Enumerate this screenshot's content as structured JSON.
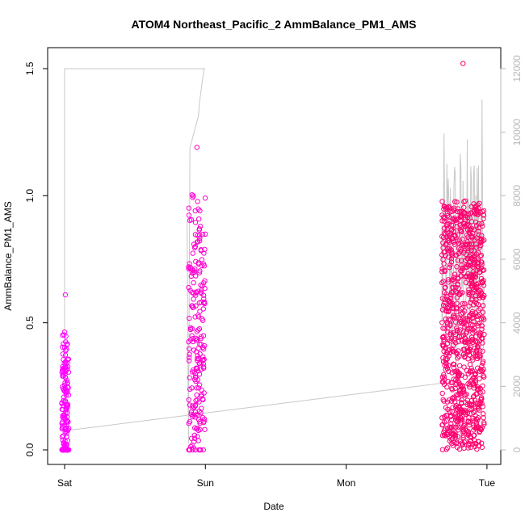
{
  "chart_data": {
    "type": "scatter",
    "title": "ATOM4 Northeast_Pacific_2 AmmBalance_PM1_AMS",
    "xlabel": "Date",
    "ylabel": "AmmBalance_PM1_AMS",
    "x_ticks": [
      "Sat",
      "Sun",
      "Mon",
      "Tue"
    ],
    "x_range_days": [
      0,
      3
    ],
    "ylim": [
      0,
      1.5
    ],
    "y_ticks": [
      "0.0",
      "0.5",
      "1.0",
      "1.5"
    ],
    "y2_ticks": [
      "0",
      "2000",
      "4000",
      "6000",
      "8000",
      "10000",
      "12000"
    ],
    "y2lim": [
      0,
      12000
    ],
    "grid": false,
    "colors": {
      "points_start": "#ff00ff",
      "points_end": "#ff0066",
      "secondary_line": "#c8c8c8",
      "right_axis": "#b8b8b8"
    },
    "clusters": [
      {
        "name": "Sat",
        "x_start": -0.02,
        "x_end": 0.03,
        "y_center": 0.15,
        "y_spread": 0.5,
        "y_max_outlier": 0.61
      },
      {
        "name": "Sun",
        "x_start": 0.88,
        "x_end": 1.0,
        "y_center": 0.45,
        "y_spread": 0.85,
        "y_max_outlier": 1.19
      },
      {
        "name": "Tue",
        "x_start": 2.68,
        "x_end": 2.98,
        "y_center": 0.5,
        "y_spread": 1.0,
        "y_max_outlier": 1.52
      }
    ],
    "secondary_series": {
      "plateau_value": 12000,
      "plateau_x": [
        0.0,
        1.0
      ],
      "baseline_line": {
        "x": [
          0.0,
          2.68
        ],
        "y": [
          600,
          2100
        ]
      }
    }
  }
}
